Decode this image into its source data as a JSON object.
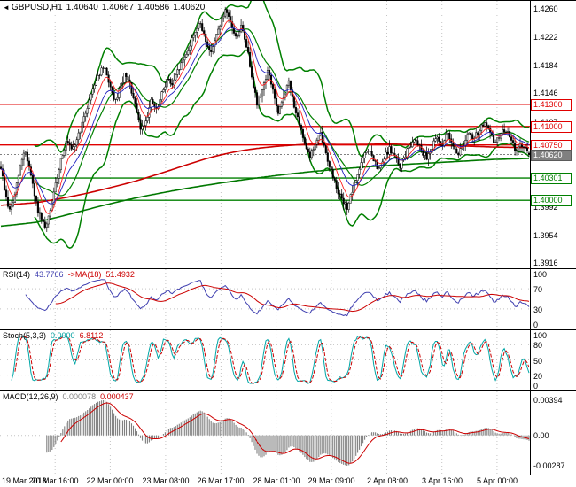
{
  "colors": {
    "up": "#ffffff",
    "down": "#000000",
    "wick": "#000000",
    "bollinger": "#008000",
    "ma_long_red": "#cc0000",
    "ma_long_green": "#007800",
    "ma_fast_red": "#ff2020",
    "ma_fast_blue": "#2020c0",
    "line_red": "#e00000",
    "line_green": "#008000",
    "current": "#808080",
    "rsi": "#4040b0",
    "rsi_ma": "#cc0000",
    "stoch_k": "#00a7a7",
    "stoch_d": "#cc0000",
    "macd_hist": "#808080",
    "macd_signal": "#cc0000",
    "grid": "#c4c4c4"
  },
  "panels": {
    "main": {
      "arrow": "◄",
      "symbol": "GBPUSD,H1",
      "open": "1.40640",
      "high": "1.40667",
      "low": "1.40586",
      "close": "1.40620"
    },
    "rsi": {
      "name": "RSI(14)",
      "value": "43.7766",
      "ma_name": "->MA(18)",
      "ma_value": "51.4932"
    },
    "stoch": {
      "name": "Stoch(5,3,3)",
      "k": "0.0000",
      "d": "6.8112"
    },
    "macd": {
      "name": "MACD(12,26,9)",
      "macd": "0.000078",
      "signal": "0.000437"
    }
  },
  "chart_data": [
    {
      "type": "candlestick",
      "symbol": "GBPUSD",
      "timeframe": "H1",
      "ohlc_display": {
        "open": 1.4064,
        "high": 1.40667,
        "low": 1.40586,
        "close": 1.4062
      },
      "ylim": [
        1.3908,
        1.427
      ],
      "bar_count": 300,
      "y_axis_ticks": [
        "1.4260",
        "1.4222",
        "1.4184",
        "1.4146",
        "1.4107",
        "1.4069",
        "1.4031",
        "1.3992",
        "1.3954",
        "1.3916"
      ],
      "x_axis_labels": [
        {
          "text": "19 Mar 2018",
          "f": 0.003,
          "align": "left"
        },
        {
          "text": "20 Mar 16:00",
          "f": 0.104
        },
        {
          "text": "22 Mar 00:00",
          "f": 0.208
        },
        {
          "text": "23 Mar 08:00",
          "f": 0.3125
        },
        {
          "text": "26 Mar 17:00",
          "f": 0.417
        },
        {
          "text": "28 Mar 01:00",
          "f": 0.521
        },
        {
          "text": "29 Mar 09:00",
          "f": 0.625
        },
        {
          "text": "2 Apr 08:00",
          "f": 0.73
        },
        {
          "text": "3 Apr 16:00",
          "f": 0.834
        },
        {
          "text": "5 Apr 00:00",
          "f": 0.938
        }
      ],
      "horizontal_lines": [
        {
          "label": "1.41300",
          "price": 1.413,
          "color": "#e00000"
        },
        {
          "label": "1.41000",
          "price": 1.41,
          "color": "#e00000"
        },
        {
          "label": "1.40750",
          "price": 1.4075,
          "color": "#e00000"
        },
        {
          "label": "1.40301",
          "price": 1.40301,
          "color": "#008000"
        },
        {
          "label": "1.40000",
          "price": 1.4,
          "color": "#008000"
        }
      ],
      "current_price": {
        "label": "1.40620",
        "price": 1.4062
      },
      "price_anchors": [
        [
          0.0,
          1.4045
        ],
        [
          0.008,
          1.401
        ],
        [
          0.016,
          1.3985
        ],
        [
          0.025,
          1.4
        ],
        [
          0.035,
          1.404
        ],
        [
          0.045,
          1.407
        ],
        [
          0.055,
          1.404
        ],
        [
          0.065,
          1.4
        ],
        [
          0.075,
          1.3975
        ],
        [
          0.085,
          1.396
        ],
        [
          0.095,
          1.399
        ],
        [
          0.105,
          1.4025
        ],
        [
          0.115,
          1.406
        ],
        [
          0.125,
          1.408
        ],
        [
          0.135,
          1.4065
        ],
        [
          0.145,
          1.4085
        ],
        [
          0.155,
          1.4105
        ],
        [
          0.165,
          1.413
        ],
        [
          0.175,
          1.4155
        ],
        [
          0.185,
          1.417
        ],
        [
          0.195,
          1.418
        ],
        [
          0.205,
          1.416
        ],
        [
          0.215,
          1.413
        ],
        [
          0.225,
          1.415
        ],
        [
          0.235,
          1.417
        ],
        [
          0.245,
          1.4155
        ],
        [
          0.255,
          1.4125
        ],
        [
          0.265,
          1.4095
        ],
        [
          0.275,
          1.411
        ],
        [
          0.285,
          1.4135
        ],
        [
          0.295,
          1.412
        ],
        [
          0.305,
          1.4145
        ],
        [
          0.315,
          1.4165
        ],
        [
          0.325,
          1.4155
        ],
        [
          0.335,
          1.4175
        ],
        [
          0.345,
          1.419
        ],
        [
          0.355,
          1.4205
        ],
        [
          0.365,
          1.4225
        ],
        [
          0.375,
          1.424
        ],
        [
          0.385,
          1.4225
        ],
        [
          0.395,
          1.42
        ],
        [
          0.405,
          1.4215
        ],
        [
          0.415,
          1.424
        ],
        [
          0.425,
          1.4255
        ],
        [
          0.435,
          1.424
        ],
        [
          0.445,
          1.422
        ],
        [
          0.455,
          1.4235
        ],
        [
          0.465,
          1.421
        ],
        [
          0.475,
          1.417
        ],
        [
          0.485,
          1.413
        ],
        [
          0.495,
          1.415
        ],
        [
          0.505,
          1.4175
        ],
        [
          0.515,
          1.415
        ],
        [
          0.525,
          1.4115
        ],
        [
          0.535,
          1.414
        ],
        [
          0.545,
          1.416
        ],
        [
          0.555,
          1.413
        ],
        [
          0.565,
          1.41
        ],
        [
          0.575,
          1.408
        ],
        [
          0.585,
          1.406
        ],
        [
          0.595,
          1.4075
        ],
        [
          0.605,
          1.409
        ],
        [
          0.615,
          1.4065
        ],
        [
          0.625,
          1.404
        ],
        [
          0.635,
          1.402
        ],
        [
          0.645,
          1.4
        ],
        [
          0.655,
          1.399
        ],
        [
          0.665,
          1.401
        ],
        [
          0.675,
          1.4035
        ],
        [
          0.685,
          1.4055
        ],
        [
          0.695,
          1.407
        ],
        [
          0.705,
          1.4055
        ],
        [
          0.715,
          1.404
        ],
        [
          0.725,
          1.4055
        ],
        [
          0.735,
          1.407
        ],
        [
          0.745,
          1.406
        ],
        [
          0.755,
          1.4045
        ],
        [
          0.765,
          1.406
        ],
        [
          0.775,
          1.4075
        ],
        [
          0.785,
          1.4085
        ],
        [
          0.795,
          1.407
        ],
        [
          0.805,
          1.4058
        ],
        [
          0.815,
          1.407
        ],
        [
          0.825,
          1.4085
        ],
        [
          0.835,
          1.4075
        ],
        [
          0.845,
          1.409
        ],
        [
          0.855,
          1.4078
        ],
        [
          0.865,
          1.4062
        ],
        [
          0.875,
          1.4075
        ],
        [
          0.885,
          1.409
        ],
        [
          0.895,
          1.4082
        ],
        [
          0.905,
          1.4095
        ],
        [
          0.915,
          1.4105
        ],
        [
          0.925,
          1.4092
        ],
        [
          0.935,
          1.4078
        ],
        [
          0.945,
          1.4088
        ],
        [
          0.955,
          1.4098
        ],
        [
          0.965,
          1.4082
        ],
        [
          0.975,
          1.4068
        ],
        [
          0.985,
          1.4075
        ],
        [
          1.0,
          1.4062
        ]
      ],
      "overlay_ma_red_anchors": [
        [
          0.0,
          1.399
        ],
        [
          0.1,
          1.4
        ],
        [
          0.2,
          1.4015
        ],
        [
          0.3,
          1.4035
        ],
        [
          0.35,
          1.4048
        ],
        [
          0.4,
          1.406
        ],
        [
          0.45,
          1.4068
        ],
        [
          0.5,
          1.4072
        ],
        [
          0.55,
          1.4075
        ],
        [
          0.6,
          1.4077
        ],
        [
          0.65,
          1.4078
        ],
        [
          0.7,
          1.4077
        ],
        [
          0.75,
          1.4076
        ],
        [
          0.8,
          1.4075
        ],
        [
          0.85,
          1.4074
        ],
        [
          0.9,
          1.4073
        ],
        [
          0.95,
          1.4072
        ],
        [
          1.0,
          1.407
        ]
      ],
      "overlay_ma_green_anchors": [
        [
          0.0,
          1.396
        ],
        [
          0.1,
          1.3975
        ],
        [
          0.2,
          1.3995
        ],
        [
          0.3,
          1.401
        ],
        [
          0.4,
          1.4022
        ],
        [
          0.5,
          1.4032
        ],
        [
          0.6,
          1.404
        ],
        [
          0.7,
          1.4046
        ],
        [
          0.8,
          1.405
        ],
        [
          0.9,
          1.4054
        ],
        [
          1.0,
          1.4058
        ]
      ]
    },
    {
      "type": "line",
      "panel": "RSI",
      "label": "RSI(14)",
      "current": 43.7766,
      "ma_label": "MA(18)",
      "ma_current": 51.4932,
      "range": [
        0,
        100
      ],
      "gridlines": [
        70,
        30
      ],
      "ticks": [
        "100",
        "70",
        "30",
        "0"
      ]
    },
    {
      "type": "line",
      "panel": "Stochastic",
      "label": "Stoch(5,3,3)",
      "k_current": 0.0,
      "d_current": 6.8112,
      "range": [
        0,
        100
      ],
      "gridlines": [
        80,
        50,
        20
      ],
      "ticks": [
        "100",
        "80",
        "50",
        "20",
        "0"
      ]
    },
    {
      "type": "macd",
      "label": "MACD(12,26,9)",
      "macd_current": 7.8e-05,
      "signal_current": 0.000437,
      "tick_top": "0.00394",
      "tick_zero": "0.00",
      "tick_bottom": "-0.00287"
    }
  ]
}
